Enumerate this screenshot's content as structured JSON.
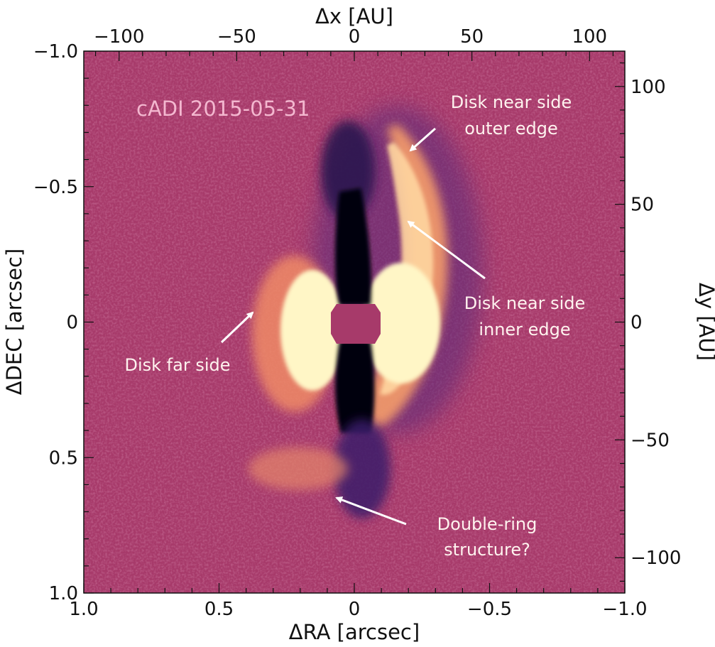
{
  "figure": {
    "panel_label": "cADI 2015-05-31",
    "colors": {
      "background": "#a73a6a",
      "bright": "#fff6c6",
      "orange": "#f39a6d",
      "dark": "#04030d",
      "purple": "#3b1a6b",
      "occulter": "#a73a6a"
    },
    "axes": {
      "bottom": {
        "title": "ΔRA [arcsec]",
        "range": [
          1.0,
          -1.0
        ],
        "ticks": [
          {
            "value": 1.0,
            "label": "1.0"
          },
          {
            "value": 0.5,
            "label": "0.5"
          },
          {
            "value": 0,
            "label": "0"
          },
          {
            "value": -0.5,
            "label": "−0.5"
          },
          {
            "value": -1.0,
            "label": "−1.0"
          }
        ]
      },
      "left": {
        "title": "ΔDEC [arcsec]",
        "range": [
          -1.0,
          1.0
        ],
        "ticks": [
          {
            "value": -1.0,
            "label": "−1.0"
          },
          {
            "value": -0.5,
            "label": "−0.5"
          },
          {
            "value": 0,
            "label": "0"
          },
          {
            "value": 0.5,
            "label": "0.5"
          },
          {
            "value": 1.0,
            "label": "1.0"
          }
        ]
      },
      "top": {
        "title": "Δx [AU]",
        "range": [
          -115,
          115
        ],
        "ticks": [
          {
            "value": -100,
            "label": "−100"
          },
          {
            "value": -50,
            "label": "−50"
          },
          {
            "value": 0,
            "label": "0"
          },
          {
            "value": 50,
            "label": "50"
          },
          {
            "value": 100,
            "label": "100"
          }
        ]
      },
      "right": {
        "title": "Δy [AU]",
        "range": [
          115,
          -115
        ],
        "ticks": [
          {
            "value": 100,
            "label": "100"
          },
          {
            "value": 50,
            "label": "50"
          },
          {
            "value": 0,
            "label": "0"
          },
          {
            "value": -50,
            "label": "−50"
          },
          {
            "value": -100,
            "label": "−100"
          }
        ]
      }
    },
    "annotations": [
      {
        "lines": [
          "Disk near side",
          "outer edge"
        ]
      },
      {
        "lines": [
          "Disk near side",
          "inner edge"
        ]
      },
      {
        "lines": [
          "Disk far side"
        ]
      },
      {
        "lines": [
          "Double-ring",
          "structure?"
        ]
      }
    ]
  }
}
